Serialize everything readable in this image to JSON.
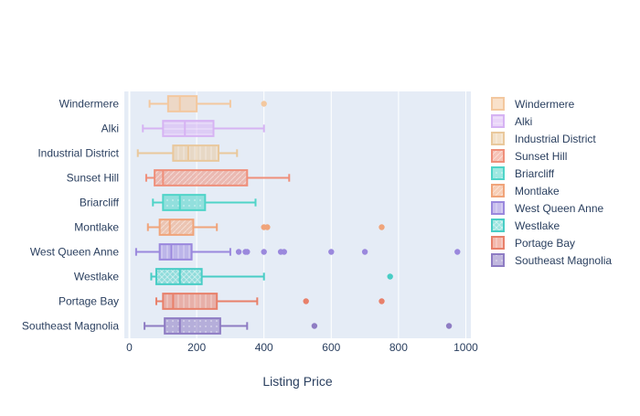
{
  "chart_data": {
    "type": "box",
    "orientation": "horizontal",
    "title": "",
    "xlabel": "Listing Price",
    "ylabel": "",
    "xlim": [
      -15,
      1015
    ],
    "xticks": [
      0,
      200,
      400,
      600,
      800,
      1000
    ],
    "grid": true,
    "legend_position": "right",
    "categories": [
      "Southeast Magnolia",
      "Portage Bay",
      "Westlake",
      "West Queen Anne",
      "Montlake",
      "Briarcliff",
      "Sunset Hill",
      "Industrial District",
      "Alki",
      "Windermere"
    ],
    "series": [
      {
        "name": "Southeast Magnolia",
        "color": "#8e7cc3",
        "pattern": "dots",
        "min": 45,
        "q1": 105,
        "median": 150,
        "q3": 270,
        "max": 350,
        "outliers": [
          550,
          950
        ]
      },
      {
        "name": "Portage Bay",
        "color": "#e8806a",
        "pattern": "vlines",
        "min": 80,
        "q1": 100,
        "median": 130,
        "q3": 260,
        "max": 380,
        "outliers": [
          525,
          750
        ]
      },
      {
        "name": "Westlake",
        "color": "#48cdc5",
        "pattern": "crosshatch",
        "min": 65,
        "q1": 80,
        "median": 150,
        "q3": 215,
        "max": 400,
        "outliers": [
          775
        ]
      },
      {
        "name": "West Queen Anne",
        "color": "#9a88dd",
        "pattern": "vlines",
        "min": 20,
        "q1": 90,
        "median": 125,
        "q3": 185,
        "max": 300,
        "outliers": [
          325,
          345,
          350,
          400,
          450,
          460,
          600,
          700,
          975
        ]
      },
      {
        "name": "Montlake",
        "color": "#f0a47a",
        "pattern": "diag",
        "min": 55,
        "q1": 90,
        "median": 120,
        "q3": 190,
        "max": 260,
        "outliers": [
          400,
          410,
          750
        ]
      },
      {
        "name": "Briarcliff",
        "color": "#4fd4c8",
        "pattern": "dots",
        "min": 70,
        "q1": 100,
        "median": 150,
        "q3": 225,
        "max": 375,
        "outliers": []
      },
      {
        "name": "Sunset Hill",
        "color": "#ef8f7a",
        "pattern": "diag",
        "min": 50,
        "q1": 75,
        "median": 100,
        "q3": 350,
        "max": 475,
        "outliers": []
      },
      {
        "name": "Industrial District",
        "color": "#e9c89c",
        "pattern": "vlines",
        "min": 25,
        "q1": 130,
        "median": 175,
        "q3": 265,
        "max": 320,
        "outliers": []
      },
      {
        "name": "Alki",
        "color": "#d6b3f3",
        "pattern": "hlines",
        "min": 40,
        "q1": 100,
        "median": 165,
        "q3": 250,
        "max": 400,
        "outliers": []
      },
      {
        "name": "Windermere",
        "color": "#f3c89f",
        "pattern": "plain",
        "min": 60,
        "q1": 115,
        "median": 150,
        "q3": 200,
        "max": 300,
        "outliers": [
          400
        ]
      }
    ]
  }
}
